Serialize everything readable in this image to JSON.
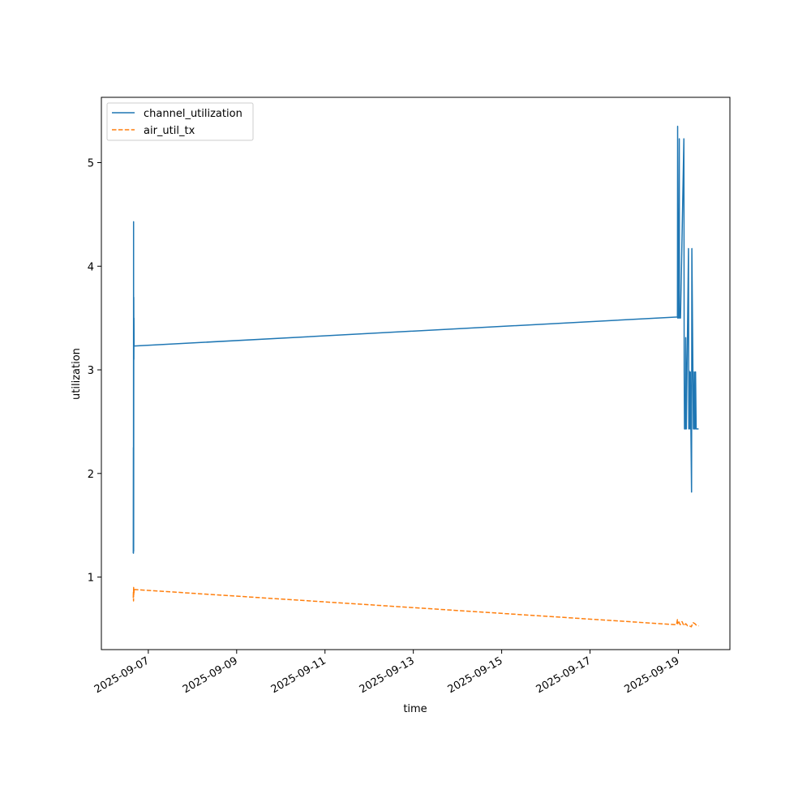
{
  "chart_data": {
    "type": "line",
    "title": "",
    "xlabel": "time",
    "ylabel": "utilization",
    "x_axis_type": "date",
    "xlim": [
      "2025-09-05T22:30",
      "2025-09-20T04:00"
    ],
    "ylim": [
      0.3,
      5.63
    ],
    "x_ticks": [
      "2025-09-07",
      "2025-09-09",
      "2025-09-11",
      "2025-09-13",
      "2025-09-15",
      "2025-09-17",
      "2025-09-19"
    ],
    "y_ticks": [
      1,
      2,
      3,
      4,
      5
    ],
    "grid": false,
    "legend_position": "upper-left",
    "series": [
      {
        "name": "channel_utilization",
        "color": "#1f77b4",
        "line_style": "solid",
        "x": [
          "2025-09-06T15:50",
          "2025-09-06T15:54",
          "2025-09-06T15:56",
          "2025-09-06T16:00",
          "2025-09-06T16:02",
          "2025-09-06T16:06",
          "2025-09-06T16:10",
          "2025-09-06T16:12",
          "2025-09-06T16:16",
          "2025-09-06T16:20",
          "2025-09-06T16:22",
          "2025-09-06T16:26",
          "2025-09-06T16:28",
          "2025-09-06T16:34",
          "2025-09-18T23:30",
          "2025-09-18T23:36",
          "2025-09-18T23:40",
          "2025-09-18T23:44",
          "2025-09-19T00:00",
          "2025-09-19T00:30",
          "2025-09-19T00:36",
          "2025-09-19T00:40",
          "2025-09-19T00:50",
          "2025-09-19T01:10",
          "2025-09-19T03:00",
          "2025-09-19T03:10",
          "2025-09-19T03:20",
          "2025-09-19T03:50",
          "2025-09-19T04:00",
          "2025-09-19T04:20",
          "2025-09-19T05:30",
          "2025-09-19T05:40",
          "2025-09-19T05:50",
          "2025-09-19T06:20",
          "2025-09-19T06:30",
          "2025-09-19T07:10",
          "2025-09-19T07:20",
          "2025-09-19T08:10",
          "2025-09-19T08:30",
          "2025-09-19T08:40",
          "2025-09-19T08:50",
          "2025-09-19T09:10",
          "2025-09-19T09:20",
          "2025-09-19T09:40",
          "2025-09-19T09:50",
          "2025-09-19T10:30",
          "2025-09-19T10:40",
          "2025-09-19T11:00"
        ],
        "y": [
          1.23,
          2.25,
          1.23,
          4.43,
          1.25,
          3.7,
          3.1,
          3.5,
          3.23,
          3.23,
          3.23,
          3.23,
          3.23,
          3.23,
          3.51,
          5.35,
          3.5,
          3.51,
          3.5,
          5.23,
          3.5,
          3.5,
          3.5,
          3.5,
          5.23,
          2.98,
          2.43,
          2.43,
          3.31,
          2.43,
          4.17,
          2.43,
          2.99,
          2.43,
          2.98,
          1.82,
          4.17,
          2.43,
          2.43,
          2.98,
          2.43,
          2.43,
          2.98,
          2.43,
          2.43,
          2.43,
          2.43,
          2.43
        ]
      },
      {
        "name": "air_util_tx",
        "color": "#ff7f0e",
        "line_style": "dashed",
        "x": [
          "2025-09-06T15:50",
          "2025-09-06T15:54",
          "2025-09-06T15:58",
          "2025-09-06T16:02",
          "2025-09-06T16:06",
          "2025-09-06T16:10",
          "2025-09-06T16:14",
          "2025-09-06T16:20",
          "2025-09-06T16:30",
          "2025-09-18T23:00",
          "2025-09-18T23:30",
          "2025-09-18T23:40",
          "2025-09-19T00:00",
          "2025-09-19T01:00",
          "2025-09-19T02:00",
          "2025-09-19T03:00",
          "2025-09-19T04:00",
          "2025-09-19T05:00",
          "2025-09-19T06:00",
          "2025-09-19T07:00",
          "2025-09-19T08:00",
          "2025-09-19T09:00",
          "2025-09-19T10:00",
          "2025-09-19T11:00"
        ],
        "y": [
          0.8,
          0.86,
          0.77,
          0.9,
          0.82,
          0.88,
          0.85,
          0.89,
          0.88,
          0.54,
          0.59,
          0.55,
          0.58,
          0.54,
          0.57,
          0.53,
          0.55,
          0.53,
          0.53,
          0.52,
          0.56,
          0.55,
          0.53,
          0.53
        ]
      }
    ]
  }
}
